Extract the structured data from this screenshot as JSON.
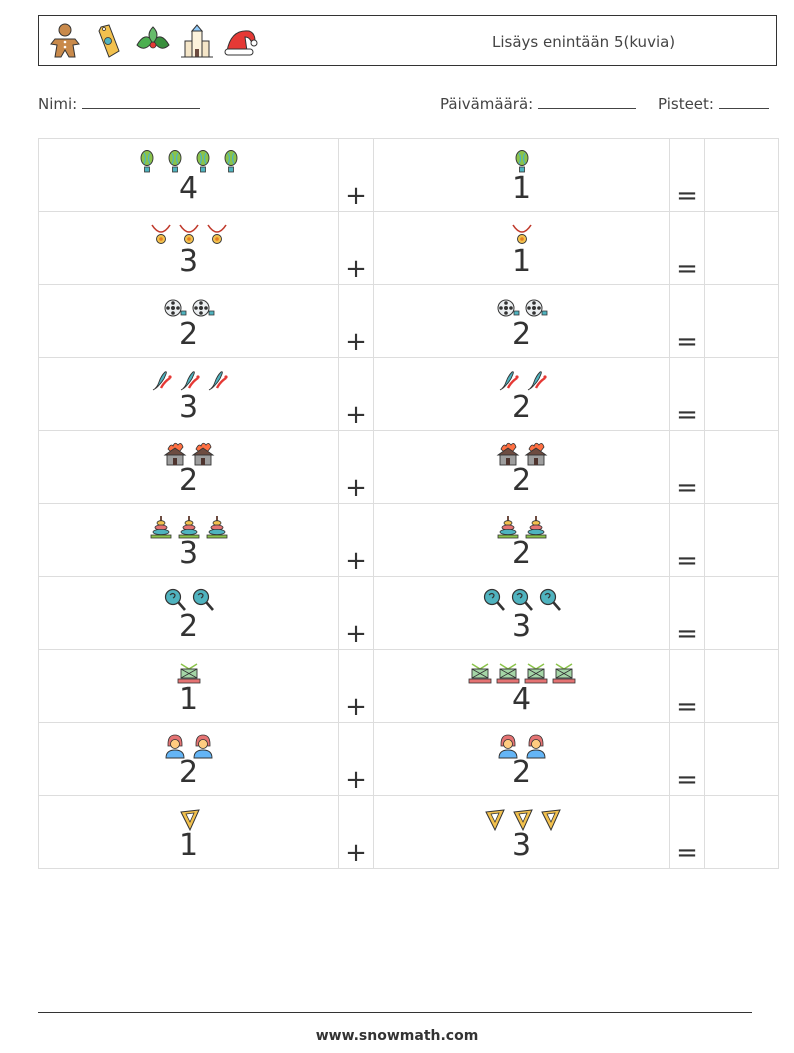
{
  "header": {
    "icons": [
      "gingerbread-icon",
      "gift-tag-icon",
      "holly-icon",
      "church-icon",
      "santa-hat-icon"
    ],
    "title": "Lisäys enintään 5(kuvia)"
  },
  "info": {
    "name_label": "Nimi:",
    "date_label": "Päivämäärä:",
    "score_label": "Pisteet:"
  },
  "operators": {
    "plus": "+",
    "equals": "="
  },
  "rows": [
    {
      "icon": "balloon-icon",
      "a": "4",
      "b": "1"
    },
    {
      "icon": "necklace-icon",
      "a": "3",
      "b": "1"
    },
    {
      "icon": "film-reel-icon",
      "a": "2",
      "b": "2"
    },
    {
      "icon": "juggling-pin-icon",
      "a": "3",
      "b": "2"
    },
    {
      "icon": "burning-house-icon",
      "a": "2",
      "b": "2"
    },
    {
      "icon": "ring-stack-icon",
      "a": "3",
      "b": "2"
    },
    {
      "icon": "magnifier-icon",
      "a": "2",
      "b": "3"
    },
    {
      "icon": "pallet-icon",
      "a": "1",
      "b": "4"
    },
    {
      "icon": "person-icon",
      "a": "2",
      "b": "2"
    },
    {
      "icon": "set-square-icon",
      "a": "1",
      "b": "3"
    }
  ],
  "footer": {
    "url": "www.snowmath.com"
  }
}
